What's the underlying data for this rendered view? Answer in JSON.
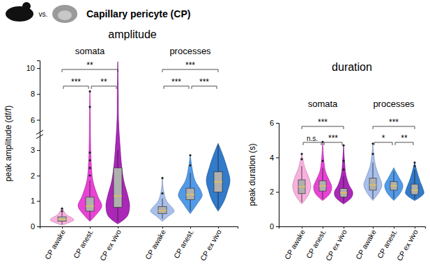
{
  "header": {
    "title": "Capillary pericyte (CP)",
    "subtitle": "vs."
  },
  "chart_data": [
    {
      "type": "violin",
      "title": "amplitude",
      "y_label": "peak amplitude (df/f)",
      "ylim": [
        0,
        10.6
      ],
      "ybreak": [
        3.25,
        5.6
      ],
      "yticks": [
        0,
        1,
        2,
        3,
        6,
        8,
        10
      ],
      "groups": [
        {
          "name": "somata",
          "series": [
            {
              "name": "CP awake",
              "color": "#f7a8dc",
              "box": {
                "min": 0.08,
                "q1": 0.2,
                "median": 0.28,
                "q3": 0.38,
                "max": 0.55
              },
              "violin": {
                "y": [
                  0.05,
                  0.15,
                  0.25,
                  0.32,
                  0.45,
                  0.6,
                  0.75
                ],
                "density": [
                  0,
                  0.6,
                  1,
                  0.9,
                  0.4,
                  0.15,
                  0
                ]
              },
              "outliers": [
                0.6,
                0.7
              ]
            },
            {
              "name": "CP anest.",
              "color": "#e52fd0",
              "box": {
                "min": 0.25,
                "q1": 0.6,
                "median": 0.8,
                "q3": 1.15,
                "max": 1.8
              },
              "violin": {
                "y": [
                  0.2,
                  0.5,
                  0.8,
                  1.2,
                  1.8,
                  2.6,
                  4,
                  6,
                  8.3
                ],
                "density": [
                  0,
                  0.6,
                  1,
                  0.65,
                  0.25,
                  0.1,
                  0.05,
                  0.04,
                  0
                ]
              },
              "outliers": [
                2.0,
                2.3,
                2.6,
                2.9,
                7.0,
                8.2
              ]
            },
            {
              "name": "CP ex vivo",
              "color": "#a10fb0",
              "box": {
                "min": 0.2,
                "q1": 0.75,
                "median": 1.2,
                "q3": 2.3,
                "max": 3.0
              },
              "violin": {
                "y": [
                  0.1,
                  0.4,
                  0.8,
                  1.2,
                  1.8,
                  2.5,
                  3.1,
                  6,
                  8,
                  10.5
                ],
                "density": [
                  0,
                  0.8,
                  1,
                  0.85,
                  0.5,
                  0.3,
                  0.2,
                  0.06,
                  0.04,
                  0
                ]
              },
              "outliers": []
            }
          ],
          "comparisons": [
            {
              "from": 0,
              "to": 1,
              "label": "***"
            },
            {
              "from": 1,
              "to": 2,
              "label": "**"
            },
            {
              "from": 0,
              "to": 2,
              "label": "**"
            }
          ]
        },
        {
          "name": "processes",
          "series": [
            {
              "name": "CP awake",
              "color": "#9db8ea",
              "box": {
                "min": 0.3,
                "q1": 0.5,
                "median": 0.62,
                "q3": 0.78,
                "max": 1.1
              },
              "violin": {
                "y": [
                  0.2,
                  0.4,
                  0.6,
                  0.75,
                  1.0,
                  1.4,
                  1.9
                ],
                "density": [
                  0,
                  0.5,
                  1,
                  0.8,
                  0.35,
                  0.1,
                  0
                ]
              },
              "outliers": [
                1.3,
                1.9
              ]
            },
            {
              "name": "CP anest.",
              "color": "#3f8fe6",
              "box": {
                "min": 0.6,
                "q1": 1.05,
                "median": 1.25,
                "q3": 1.5,
                "max": 2.1
              },
              "violin": {
                "y": [
                  0.5,
                  0.9,
                  1.2,
                  1.4,
                  1.8,
                  2.3,
                  2.8
                ],
                "density": [
                  0,
                  0.6,
                  1,
                  0.9,
                  0.4,
                  0.15,
                  0
                ]
              },
              "outliers": [
                2.4,
                2.8
              ]
            },
            {
              "name": "CP ex vivo",
              "color": "#1c6cc4",
              "box": {
                "min": 0.7,
                "q1": 1.35,
                "median": 1.75,
                "q3": 2.15,
                "max": 3.2
              },
              "violin": {
                "y": [
                  0.6,
                  1.0,
                  1.4,
                  1.8,
                  2.3,
                  2.8,
                  3.3
                ],
                "density": [
                  0,
                  0.5,
                  0.8,
                  1,
                  0.75,
                  0.4,
                  0
                ]
              },
              "outliers": []
            }
          ],
          "comparisons": [
            {
              "from": 0,
              "to": 1,
              "label": "***"
            },
            {
              "from": 1,
              "to": 2,
              "label": "***"
            },
            {
              "from": 0,
              "to": 2,
              "label": "***"
            }
          ]
        }
      ]
    },
    {
      "type": "violin",
      "title": "duration",
      "y_label": "peak duration (s)",
      "ylim": [
        0,
        6
      ],
      "yticks": [
        0,
        2,
        4,
        6
      ],
      "groups": [
        {
          "name": "somata",
          "series": [
            {
              "name": "CP awake",
              "color": "#f7a8dc",
              "box": {
                "min": 1.4,
                "q1": 1.9,
                "median": 2.3,
                "q3": 2.7,
                "max": 3.5
              },
              "violin": {
                "y": [
                  1.3,
                  1.8,
                  2.3,
                  2.8,
                  3.4,
                  4.2
                ],
                "density": [
                  0,
                  0.7,
                  1,
                  0.8,
                  0.35,
                  0
                ]
              },
              "outliers": [
                3.9,
                4.2
              ]
            },
            {
              "name": "CP anest.",
              "color": "#e52fd0",
              "box": {
                "min": 1.6,
                "q1": 2.05,
                "median": 2.35,
                "q3": 2.65,
                "max": 3.4
              },
              "violin": {
                "y": [
                  1.5,
                  1.9,
                  2.3,
                  2.7,
                  3.2,
                  4,
                  4.9
                ],
                "density": [
                  0,
                  0.8,
                  1,
                  0.7,
                  0.3,
                  0.1,
                  0
                ]
              },
              "outliers": [
                3.8,
                4.9
              ]
            },
            {
              "name": "CP ex vivo",
              "color": "#a10fb0",
              "box": {
                "min": 1.4,
                "q1": 1.7,
                "median": 1.95,
                "q3": 2.2,
                "max": 2.9
              },
              "violin": {
                "y": [
                  1.3,
                  1.7,
                  2.0,
                  2.4,
                  3,
                  3.8,
                  4.7
                ],
                "density": [
                  0,
                  0.9,
                  1,
                  0.6,
                  0.25,
                  0.1,
                  0
                ]
              },
              "outliers": [
                3.3,
                3.8,
                4.7
              ]
            }
          ],
          "comparisons": [
            {
              "from": 0,
              "to": 1,
              "label": "n.s."
            },
            {
              "from": 1,
              "to": 2,
              "label": "***"
            },
            {
              "from": 0,
              "to": 2,
              "label": "***"
            }
          ]
        },
        {
          "name": "processes",
          "series": [
            {
              "name": "CP awake",
              "color": "#9db8ea",
              "box": {
                "min": 1.6,
                "q1": 2.1,
                "median": 2.4,
                "q3": 2.8,
                "max": 3.7
              },
              "violin": {
                "y": [
                  1.5,
                  2,
                  2.4,
                  2.9,
                  3.5,
                  4.2,
                  4.8
                ],
                "density": [
                  0,
                  0.7,
                  1,
                  0.7,
                  0.3,
                  0.1,
                  0
                ]
              },
              "outliers": [
                4.2,
                4.8
              ]
            },
            {
              "name": "CP anest.",
              "color": "#3f8fe6",
              "box": {
                "min": 1.6,
                "q1": 2.1,
                "median": 2.35,
                "q3": 2.6,
                "max": 3.2
              },
              "violin": {
                "y": [
                  1.5,
                  2,
                  2.4,
                  2.8,
                  3.1,
                  3.4
                ],
                "density": [
                  0,
                  0.8,
                  1,
                  0.6,
                  0.3,
                  0
                ]
              },
              "outliers": []
            },
            {
              "name": "CP ex vivo",
              "color": "#1c6cc4",
              "box": {
                "min": 1.6,
                "q1": 1.85,
                "median": 2.1,
                "q3": 2.45,
                "max": 3.3
              },
              "violin": {
                "y": [
                  1.5,
                  1.9,
                  2.2,
                  2.6,
                  3.1,
                  3.7
                ],
                "density": [
                  0,
                  1,
                  0.9,
                  0.6,
                  0.3,
                  0
                ]
              },
              "outliers": [
                3.5,
                3.7
              ]
            }
          ],
          "comparisons": [
            {
              "from": 0,
              "to": 1,
              "label": "*"
            },
            {
              "from": 1,
              "to": 2,
              "label": "**"
            },
            {
              "from": 0,
              "to": 2,
              "label": "***"
            }
          ]
        }
      ]
    }
  ]
}
